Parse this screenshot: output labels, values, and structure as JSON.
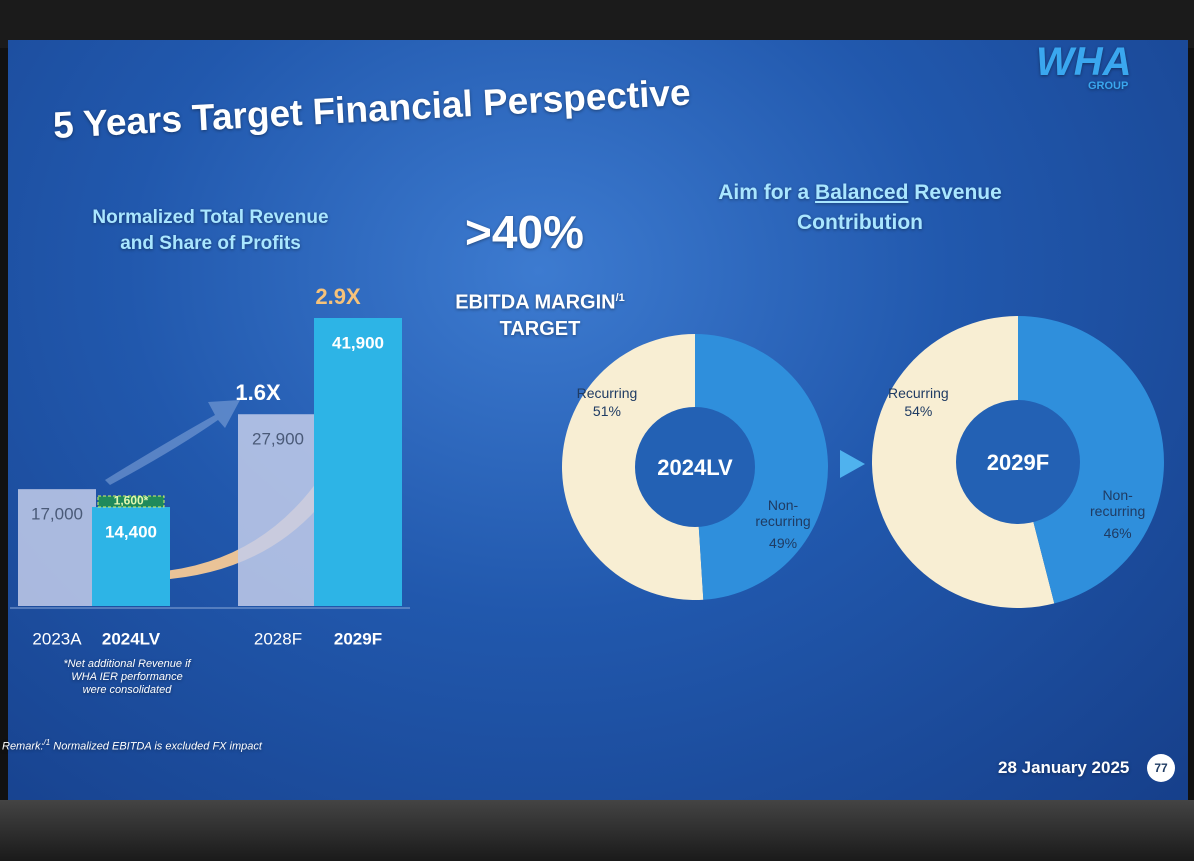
{
  "slide": {
    "logo": "WHA",
    "logo_sub": "GROUP",
    "title": "5 Years Target Financial Perspective",
    "left_heading": "Normalized Total Revenue and Share of Profits",
    "big_figure": ">40%",
    "ebitda_label": "EBITDA MARGIN",
    "ebitda_mark": "/1",
    "ebitda_label2": "TARGET",
    "right_heading_parts": [
      "Aim for a",
      "Balanced",
      "Revenue Contribution"
    ],
    "remark_label": "Remark:",
    "remark_mark": "/1",
    "remark_text": "Normalized EBITDA is excluded FX impact",
    "date": "28 January 2025",
    "page": "77"
  },
  "chart_data": [
    {
      "type": "bar",
      "categories": [
        "2023A",
        "2024LV",
        "2028F",
        "2029F"
      ],
      "values": [
        17000,
        14400,
        27900,
        41900
      ],
      "value_labels": [
        "17,000",
        "14,400",
        "27,900",
        "41,900"
      ],
      "colors": [
        "#c3cdea",
        "#2db4e6",
        "#c3cdea",
        "#2db4e6"
      ],
      "highlight": [
        false,
        true,
        false,
        true
      ],
      "stacked_values": [
        null,
        1600,
        null,
        null
      ],
      "stacked_value_labels": [
        null,
        "1,600*",
        null,
        null
      ],
      "stacked_color": "#1f8a5c",
      "multipliers": [
        null,
        null,
        "1.6X",
        "2.9X"
      ],
      "note": "*Net additional Revenue if WHA IER performance were consolidated"
    },
    {
      "type": "pie",
      "title": "2024LV",
      "categories": [
        "Recurring",
        "Non-recurring"
      ],
      "values": [
        51,
        49
      ],
      "value_labels": [
        "51%",
        "49%"
      ],
      "colors": [
        "#f8eed3",
        "#2f8fdc"
      ]
    },
    {
      "type": "pie",
      "title": "2029F",
      "categories": [
        "Recurring",
        "Non-recurring"
      ],
      "values": [
        54,
        46
      ],
      "value_labels": [
        "54%",
        "46%"
      ],
      "colors": [
        "#f8eed3",
        "#2f8fdc"
      ]
    }
  ]
}
